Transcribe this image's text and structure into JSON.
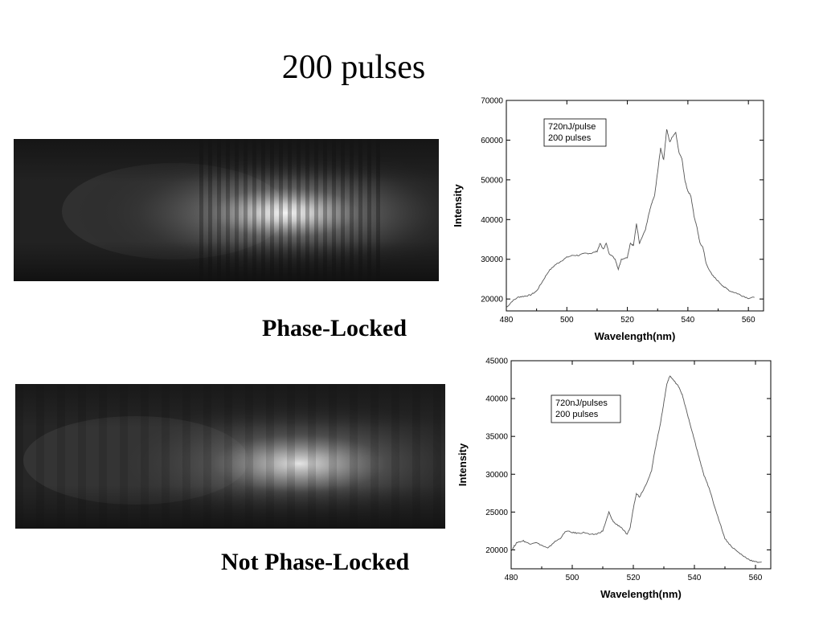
{
  "slide": {
    "title": "200 pulses",
    "top_caption": "Phase-Locked",
    "bottom_caption": "Not Phase-Locked"
  },
  "chart_data": [
    {
      "type": "line",
      "xlabel": "Wavelength(nm)",
      "ylabel": "Intensity",
      "xlim": [
        480,
        565
      ],
      "ylim": [
        17000,
        70000
      ],
      "xticks": [
        480,
        500,
        520,
        540,
        560
      ],
      "yticks": [
        20000,
        30000,
        40000,
        50000,
        60000,
        70000
      ],
      "legend": [
        "720nJ/pulse",
        "200 pulses"
      ],
      "legend_position": "top-left",
      "color": "#555555",
      "series": [
        {
          "x": [
            480,
            482,
            484,
            486,
            488,
            490,
            492,
            494,
            496,
            498,
            500,
            502,
            504,
            506,
            508,
            510,
            511,
            512,
            513,
            514,
            516,
            517,
            518,
            520,
            521,
            522,
            523,
            524,
            526,
            527,
            528,
            529,
            530,
            531,
            532,
            533,
            534,
            535,
            536,
            537,
            538,
            539,
            540,
            541,
            542,
            543,
            544,
            545,
            546,
            548,
            550,
            552,
            554,
            556,
            558,
            560,
            562
          ],
          "y": [
            17800,
            19500,
            20500,
            20700,
            21000,
            22000,
            24500,
            27000,
            28500,
            29500,
            30500,
            31000,
            31000,
            31500,
            31500,
            32000,
            34000,
            32500,
            34000,
            31500,
            30000,
            27500,
            30000,
            30500,
            34000,
            33500,
            39000,
            34000,
            37500,
            41000,
            44000,
            46000,
            52000,
            58000,
            55000,
            62800,
            59500,
            61000,
            62000,
            57000,
            55500,
            50000,
            47000,
            46000,
            41000,
            38000,
            34000,
            33000,
            29000,
            26000,
            24500,
            23000,
            22000,
            21500,
            20800,
            20200,
            20400
          ]
        }
      ]
    },
    {
      "type": "line",
      "xlabel": "Wavelength(nm)",
      "ylabel": "Intensity",
      "xlim": [
        480,
        565
      ],
      "ylim": [
        17500,
        45000
      ],
      "xticks": [
        480,
        500,
        520,
        540,
        560
      ],
      "yticks": [
        20000,
        25000,
        30000,
        35000,
        40000,
        45000
      ],
      "legend": [
        "720nJ/pulses",
        "200 pulses"
      ],
      "legend_position": "top-left",
      "color": "#555555",
      "series": [
        {
          "x": [
            480,
            481,
            482,
            484,
            486,
            488,
            490,
            492,
            494,
            496,
            498,
            500,
            502,
            504,
            506,
            508,
            510,
            512,
            513,
            514,
            516,
            518,
            519,
            520,
            521,
            522,
            524,
            526,
            527,
            528,
            529,
            530,
            531,
            532,
            533,
            534,
            535,
            536,
            537,
            538,
            539,
            540,
            541,
            542,
            543,
            544,
            545,
            546,
            548,
            550,
            552,
            554,
            556,
            558,
            560,
            562
          ],
          "y": [
            19800,
            20500,
            21000,
            21200,
            20800,
            21000,
            20600,
            20200,
            21000,
            21500,
            22500,
            22300,
            22200,
            22300,
            22000,
            22100,
            22500,
            25000,
            24000,
            23500,
            23000,
            22000,
            23000,
            25500,
            27500,
            27000,
            28500,
            30500,
            33000,
            35000,
            37000,
            39500,
            42000,
            43000,
            42500,
            42000,
            41500,
            40500,
            39000,
            37500,
            36000,
            34500,
            33000,
            31500,
            30000,
            29000,
            28000,
            26500,
            24000,
            21500,
            20500,
            19800,
            19200,
            18700,
            18400,
            18400
          ]
        }
      ]
    }
  ]
}
